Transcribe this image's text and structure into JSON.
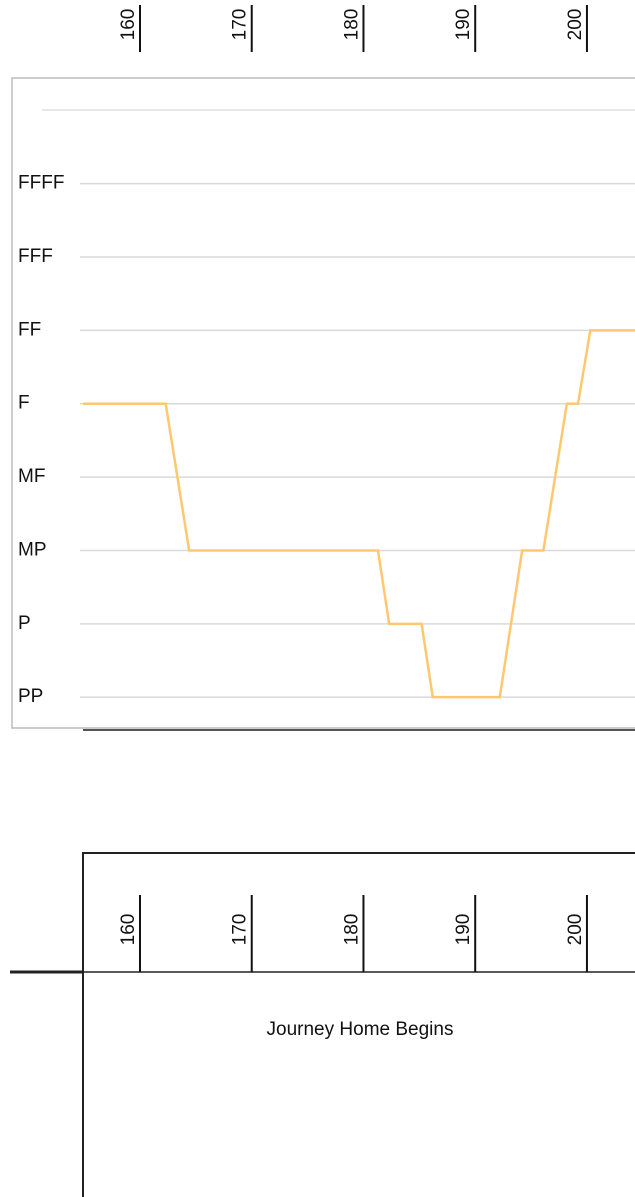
{
  "chart_data": [
    {
      "type": "line",
      "x": [
        154.9,
        162.3,
        164.4,
        181.3,
        182.3,
        185.2,
        186.2,
        192.2,
        194.2,
        196.1,
        198.2,
        199.2,
        200.3,
        204.3
      ],
      "values": [
        5,
        5,
        3,
        3,
        2,
        2,
        1,
        1,
        3,
        3,
        5,
        5,
        6,
        6
      ],
      "color": "#ffc870",
      "xlim": [
        154.9,
        204.3
      ],
      "xticks": [
        160,
        170,
        180,
        190,
        200
      ],
      "ylim": [
        0.58,
        9.44
      ],
      "yticks": [
        {
          "value": 1,
          "label": "PP"
        },
        {
          "value": 2,
          "label": "P"
        },
        {
          "value": 3,
          "label": "MP"
        },
        {
          "value": 4,
          "label": "MF"
        },
        {
          "value": 5,
          "label": "F"
        },
        {
          "value": 6,
          "label": "FF"
        },
        {
          "value": 7,
          "label": "FFF"
        },
        {
          "value": 8,
          "label": "FFFF"
        }
      ],
      "grid": true
    },
    {
      "type": "timeline",
      "xlim": [
        154.9,
        204.3
      ],
      "xticks": [
        160,
        170,
        180,
        190,
        200
      ],
      "annotation": "Journey Home Begins"
    }
  ]
}
